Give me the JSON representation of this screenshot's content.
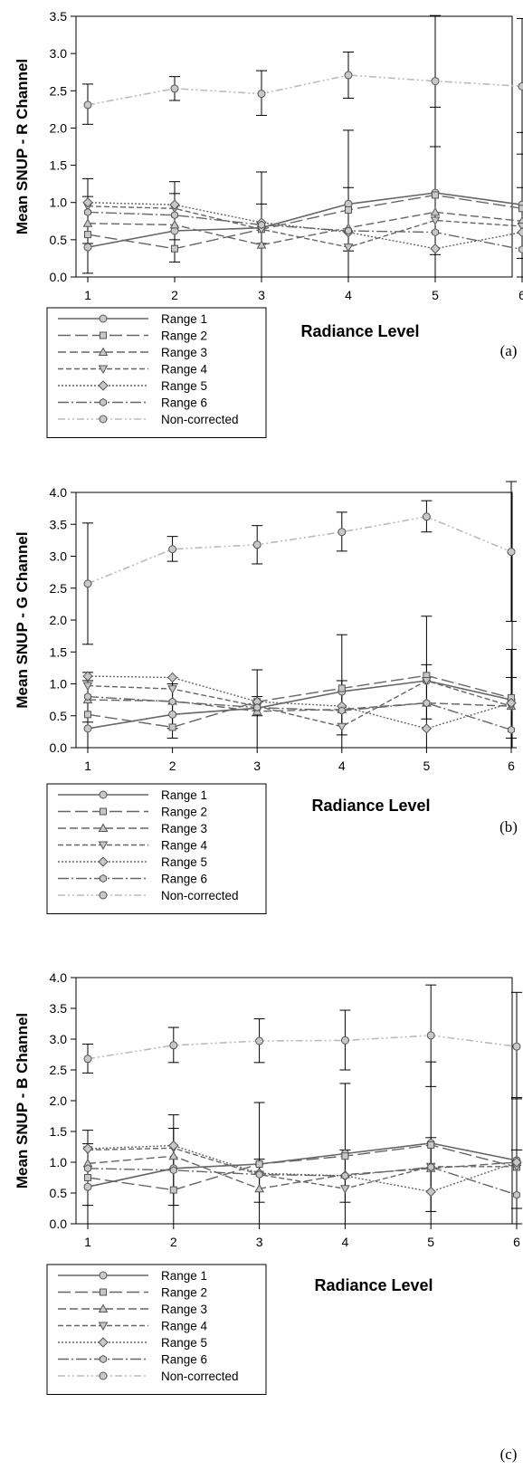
{
  "figure": {
    "series_styles": [
      {
        "marker": "circle",
        "color": "#666666",
        "dash": "",
        "width": 1.6
      },
      {
        "marker": "square",
        "color": "#666666",
        "dash": "14 5",
        "width": 1.4
      },
      {
        "marker": "triangle-up",
        "color": "#666666",
        "dash": "9 4",
        "width": 1.4
      },
      {
        "marker": "triangle-down",
        "color": "#666666",
        "dash": "6 3",
        "width": 1.4
      },
      {
        "marker": "diamond",
        "color": "#666666",
        "dash": "2 2",
        "width": 1.4
      },
      {
        "marker": "hexagon",
        "color": "#666666",
        "dash": "12 3 2 3",
        "width": 1.4
      },
      {
        "marker": "circle",
        "color": "#bbbbbb",
        "dash": "8 3 2 3 2 3",
        "width": 1.6
      }
    ],
    "marker_fill": "#c8c8c8",
    "marker_stroke": "#555555"
  },
  "chart_data": [
    {
      "type": "line",
      "panel_label": "(a)",
      "ylabel": "Mean SNUP - R Channel",
      "xlabel": "Radiance Level",
      "x": [
        1,
        2,
        3,
        4,
        5,
        6
      ],
      "ylim": [
        0.0,
        3.5
      ],
      "yticks": [
        "0.0",
        "0.5",
        "1.0",
        "1.5",
        "2.0",
        "2.5",
        "3.0",
        "3.5"
      ],
      "grid": false,
      "legend_position": "bottom-left",
      "series": [
        {
          "name": "Range 1",
          "values": [
            0.4,
            0.62,
            0.66,
            0.98,
            1.13,
            0.97
          ]
        },
        {
          "name": "Range 2",
          "values": [
            0.57,
            0.38,
            0.64,
            0.9,
            1.1,
            0.92
          ]
        },
        {
          "name": "Range 3",
          "values": [
            0.72,
            0.7,
            0.43,
            0.66,
            0.87,
            0.75
          ]
        },
        {
          "name": "Range 4",
          "values": [
            0.95,
            0.92,
            0.64,
            0.4,
            0.76,
            0.68
          ]
        },
        {
          "name": "Range 5",
          "values": [
            1.0,
            0.97,
            0.73,
            0.6,
            0.38,
            0.6
          ]
        },
        {
          "name": "Range 6",
          "values": [
            0.87,
            0.83,
            0.7,
            0.62,
            0.6,
            0.37
          ]
        },
        {
          "name": "Non-corrected",
          "values": [
            2.31,
            2.53,
            2.46,
            2.71,
            2.63,
            2.56
          ]
        }
      ],
      "error_bars": [
        {
          "x": 1,
          "low": 2.05,
          "high": 2.59
        },
        {
          "x": 2,
          "low": 2.37,
          "high": 2.69
        },
        {
          "x": 3,
          "low": 2.17,
          "high": 2.77
        },
        {
          "x": 4,
          "low": 2.4,
          "high": 3.02
        },
        {
          "x": 5,
          "low": 1.75,
          "high": 3.51
        },
        {
          "x": 6,
          "low": 1.65,
          "high": 3.47
        },
        {
          "x": 1,
          "low": 0.05,
          "high": 1.32
        },
        {
          "x": 2,
          "low": 0.2,
          "high": 1.28
        },
        {
          "x": 3,
          "low": 0.0,
          "high": 1.41
        },
        {
          "x": 4,
          "low": 0.0,
          "high": 1.97
        },
        {
          "x": 5,
          "low": 0.0,
          "high": 2.28
        },
        {
          "x": 6,
          "low": 0.0,
          "high": 1.94
        },
        {
          "x": 1,
          "low": 0.45,
          "high": 1.08
        },
        {
          "x": 2,
          "low": 0.5,
          "high": 1.12
        },
        {
          "x": 3,
          "low": 0.45,
          "high": 0.98
        },
        {
          "x": 4,
          "low": 0.35,
          "high": 1.2
        },
        {
          "x": 5,
          "low": 0.3,
          "high": 1.75
        },
        {
          "x": 6,
          "low": 0.25,
          "high": 1.2
        }
      ]
    },
    {
      "type": "line",
      "panel_label": "(b)",
      "ylabel": "Mean SNUP - G Channel",
      "xlabel": "Radiance Level",
      "x": [
        1,
        2,
        3,
        4,
        5,
        6
      ],
      "ylim": [
        0.0,
        4.0
      ],
      "yticks": [
        "0.0",
        "0.5",
        "1.0",
        "1.5",
        "2.0",
        "2.5",
        "3.0",
        "3.5",
        "4.0"
      ],
      "grid": false,
      "legend_position": "bottom-left",
      "series": [
        {
          "name": "Range 1",
          "values": [
            0.3,
            0.52,
            0.62,
            0.88,
            1.05,
            0.75
          ]
        },
        {
          "name": "Range 2",
          "values": [
            0.52,
            0.32,
            0.72,
            0.93,
            1.13,
            0.78
          ]
        },
        {
          "name": "Range 3",
          "values": [
            0.75,
            0.73,
            0.57,
            0.6,
            0.7,
            0.65
          ]
        },
        {
          "name": "Range 4",
          "values": [
            0.97,
            0.92,
            0.65,
            0.33,
            1.05,
            0.65
          ]
        },
        {
          "name": "Range 5",
          "values": [
            1.12,
            1.1,
            0.72,
            0.65,
            0.3,
            0.7
          ]
        },
        {
          "name": "Range 6",
          "values": [
            0.8,
            0.72,
            0.63,
            0.58,
            0.7,
            0.28
          ]
        },
        {
          "name": "Non-corrected",
          "values": [
            2.57,
            3.11,
            3.18,
            3.38,
            3.62,
            3.07
          ]
        }
      ],
      "error_bars": [
        {
          "x": 1,
          "low": 1.62,
          "high": 3.52
        },
        {
          "x": 2,
          "low": 2.92,
          "high": 3.31
        },
        {
          "x": 3,
          "low": 2.88,
          "high": 3.48
        },
        {
          "x": 4,
          "low": 3.08,
          "high": 3.69
        },
        {
          "x": 5,
          "low": 3.38,
          "high": 3.87
        },
        {
          "x": 6,
          "low": 1.98,
          "high": 4.17
        },
        {
          "x": 1,
          "low": 0.0,
          "high": 1.18
        },
        {
          "x": 2,
          "low": 0.15,
          "high": 1.0
        },
        {
          "x": 3,
          "low": 0.0,
          "high": 1.22
        },
        {
          "x": 4,
          "low": 0.0,
          "high": 1.77
        },
        {
          "x": 5,
          "low": 0.0,
          "high": 2.06
        },
        {
          "x": 6,
          "low": 0.0,
          "high": 1.54
        },
        {
          "x": 1,
          "low": 0.4,
          "high": 1.05
        },
        {
          "x": 2,
          "low": 0.3,
          "high": 1.1
        },
        {
          "x": 3,
          "low": 0.5,
          "high": 0.8
        },
        {
          "x": 4,
          "low": 0.2,
          "high": 1.05
        },
        {
          "x": 5,
          "low": 0.45,
          "high": 1.3
        },
        {
          "x": 6,
          "low": 0.15,
          "high": 1.1
        }
      ]
    },
    {
      "type": "line",
      "panel_label": "(c)",
      "ylabel": "Mean SNUP - B Channel",
      "xlabel": "Radiance Level",
      "x": [
        1,
        2,
        3,
        4,
        5,
        6
      ],
      "ylim": [
        0.0,
        4.0
      ],
      "yticks": [
        "0.0",
        "0.5",
        "1.0",
        "1.5",
        "2.0",
        "2.5",
        "3.0",
        "3.5",
        "4.0"
      ],
      "grid": false,
      "legend_position": "bottom-left",
      "series": [
        {
          "name": "Range 1",
          "values": [
            0.6,
            0.9,
            0.97,
            1.14,
            1.31,
            1.03
          ]
        },
        {
          "name": "Range 2",
          "values": [
            0.75,
            0.55,
            0.97,
            1.1,
            1.28,
            0.92
          ]
        },
        {
          "name": "Range 3",
          "values": [
            0.98,
            1.1,
            0.57,
            0.8,
            0.9,
            1.0
          ]
        },
        {
          "name": "Range 4",
          "values": [
            1.2,
            1.23,
            0.8,
            0.57,
            0.93,
            0.93
          ]
        },
        {
          "name": "Range 5",
          "values": [
            1.22,
            1.27,
            0.82,
            0.78,
            0.52,
            1.0
          ]
        },
        {
          "name": "Range 6",
          "values": [
            0.9,
            0.87,
            0.8,
            0.78,
            0.92,
            0.47
          ]
        },
        {
          "name": "Non-corrected",
          "values": [
            2.68,
            2.9,
            2.97,
            2.98,
            3.06,
            2.88
          ]
        }
      ],
      "error_bars": [
        {
          "x": 1,
          "low": 2.45,
          "high": 2.92
        },
        {
          "x": 2,
          "low": 2.62,
          "high": 3.19
        },
        {
          "x": 3,
          "low": 2.62,
          "high": 3.33
        },
        {
          "x": 4,
          "low": 2.5,
          "high": 3.47
        },
        {
          "x": 5,
          "low": 2.23,
          "high": 3.88
        },
        {
          "x": 6,
          "low": 2.03,
          "high": 3.76
        },
        {
          "x": 1,
          "low": 0.0,
          "high": 1.52
        },
        {
          "x": 2,
          "low": 0.0,
          "high": 1.77
        },
        {
          "x": 3,
          "low": 0.0,
          "high": 1.97
        },
        {
          "x": 4,
          "low": 0.0,
          "high": 2.28
        },
        {
          "x": 5,
          "low": 0.0,
          "high": 2.63
        },
        {
          "x": 6,
          "low": 0.0,
          "high": 2.05
        },
        {
          "x": 1,
          "low": 0.3,
          "high": 1.3
        },
        {
          "x": 2,
          "low": 0.3,
          "high": 1.55
        },
        {
          "x": 3,
          "low": 0.35,
          "high": 1.05
        },
        {
          "x": 4,
          "low": 0.35,
          "high": 1.2
        },
        {
          "x": 5,
          "low": 0.2,
          "high": 1.4
        },
        {
          "x": 6,
          "low": 0.25,
          "high": 1.2
        }
      ]
    }
  ]
}
